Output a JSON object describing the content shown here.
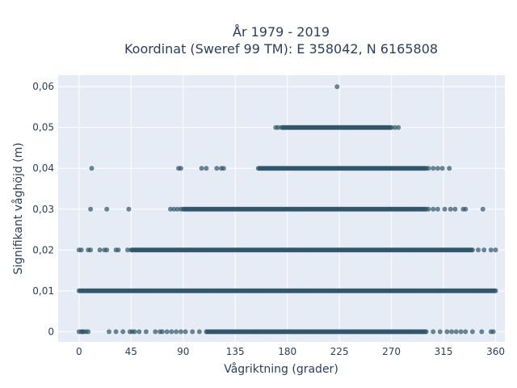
{
  "chart_data": {
    "type": "scatter",
    "title_line1": "År 1979 - 2019",
    "title_line2": "Koordinat (Sweref 99 TM): E 358042, N 6165808",
    "xlabel": "Vågriktning (grader)",
    "ylabel": "Signifikant våghöjd (m)",
    "xlim": [
      -18,
      368
    ],
    "ylim": [
      -0.0025,
      0.0628
    ],
    "x_ticks": [
      0,
      45,
      90,
      135,
      180,
      225,
      270,
      315,
      360
    ],
    "x_tick_labels": [
      "0",
      "45",
      "90",
      "135",
      "180",
      "225",
      "270",
      "315",
      "360"
    ],
    "y_ticks": [
      0,
      0.01,
      0.02,
      0.03,
      0.04,
      0.05,
      0.06
    ],
    "y_tick_labels": [
      "0",
      "0,01",
      "0,02",
      "0,03",
      "0,04",
      "0,05",
      "0,06"
    ],
    "marker_color": "#2f5468",
    "plot_bgcolor": "#e5ecf6",
    "grid": true,
    "levels": [
      {
        "y": 0,
        "dense_range": [
          110,
          300
        ],
        "scattered_x": [
          0,
          2,
          3,
          4,
          6,
          8,
          26,
          32,
          38,
          44,
          46,
          48,
          52,
          58,
          66,
          70,
          72,
          76,
          80,
          84,
          88,
          92,
          98,
          104,
          306,
          312,
          318,
          322,
          326,
          330,
          334,
          340,
          348,
          356,
          358
        ]
      },
      {
        "y": 0.01,
        "dense_range": [
          2,
          358
        ],
        "scattered_x": [
          0,
          1,
          359,
          360
        ]
      },
      {
        "y": 0.02,
        "dense_range": [
          45,
          340
        ],
        "scattered_x": [
          0,
          2,
          8,
          10,
          18,
          22,
          24,
          32,
          34,
          42,
          345,
          350,
          356,
          360
        ]
      },
      {
        "y": 0.03,
        "dense_range": [
          90,
          300
        ],
        "scattered_x": [
          10,
          24,
          43,
          79,
          82,
          85,
          88,
          302,
          306,
          310,
          316,
          321,
          325,
          332,
          334,
          349
        ]
      },
      {
        "y": 0.04,
        "dense_range": [
          155,
          300
        ],
        "scattered_x": [
          11,
          86,
          88,
          106,
          110,
          119,
          123,
          125,
          302,
          306,
          310,
          314,
          320
        ]
      },
      {
        "y": 0.05,
        "dense_range": [
          175,
          270
        ],
        "scattered_x": [
          170,
          172,
          273,
          276
        ]
      },
      {
        "y": 0.06,
        "dense_range": null,
        "scattered_x": [
          223
        ]
      }
    ]
  }
}
